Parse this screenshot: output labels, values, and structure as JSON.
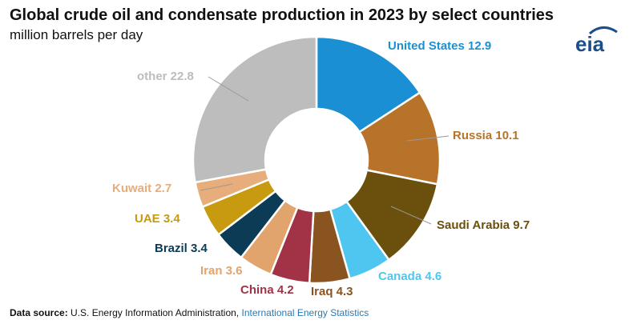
{
  "chart_data": {
    "type": "donut",
    "title": "Global crude oil and condensate production in 2023 by select countries",
    "subtitle": "million barrels per day",
    "slices": [
      {
        "name": "United States",
        "value": 12.9,
        "label": "United States 12.9",
        "color": "#1b8fd3"
      },
      {
        "name": "Russia",
        "value": 10.1,
        "label": "Russia 10.1",
        "color": "#b8732b"
      },
      {
        "name": "Saudi Arabia",
        "value": 9.7,
        "label": "Saudi Arabia 9.7",
        "color": "#6b4f0c"
      },
      {
        "name": "Canada",
        "value": 4.6,
        "label": "Canada 4.6",
        "color": "#4fc6f0"
      },
      {
        "name": "Iraq",
        "value": 4.3,
        "label": "Iraq 4.3",
        "color": "#8a5420"
      },
      {
        "name": "China",
        "value": 4.2,
        "label": "China 4.2",
        "color": "#a23347"
      },
      {
        "name": "Iran",
        "value": 3.6,
        "label": "Iran 3.6",
        "color": "#e2a46d"
      },
      {
        "name": "Brazil",
        "value": 3.4,
        "label": "Brazil 3.4",
        "color": "#0c3b55"
      },
      {
        "name": "UAE",
        "value": 3.4,
        "label": "UAE 3.4",
        "color": "#c79a0f"
      },
      {
        "name": "Kuwait",
        "value": 2.7,
        "label": "Kuwait 2.7",
        "color": "#e7ad7a"
      },
      {
        "name": "other",
        "value": 22.8,
        "label": "other 22.8",
        "color": "#bdbdbd"
      }
    ]
  },
  "source": {
    "label": "Data source:",
    "agency": "U.S. Energy Information Administration,",
    "link": "International Energy Statistics"
  },
  "logo": {
    "text": "eia",
    "color": "#1b4f8a"
  }
}
